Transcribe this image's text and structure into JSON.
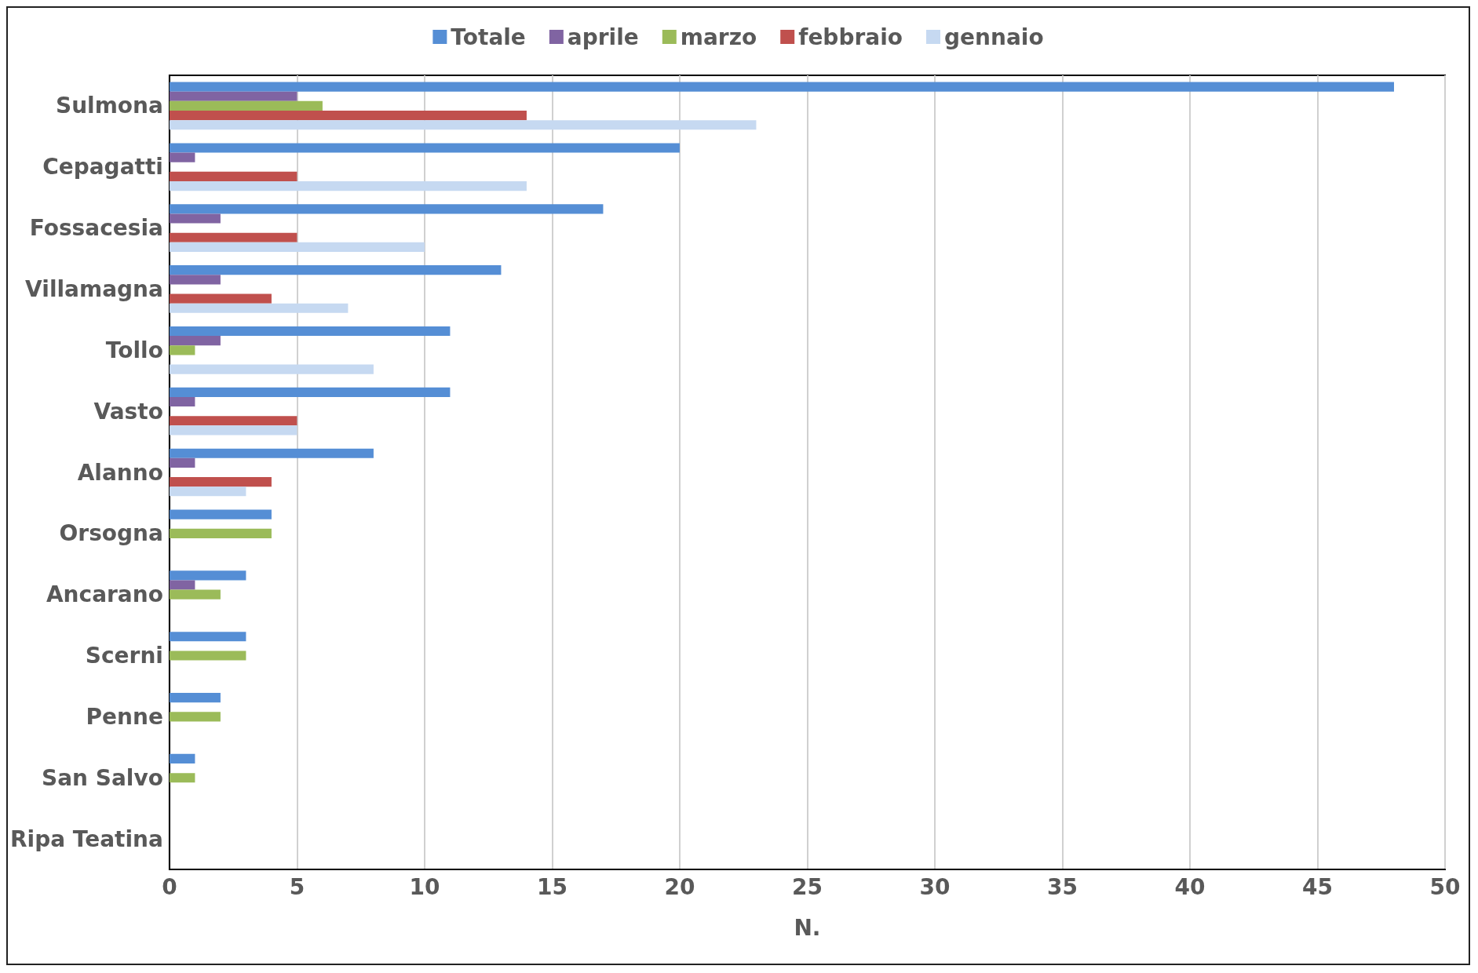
{
  "chart_data": {
    "type": "bar",
    "orientation": "horizontal",
    "xlabel": "N.",
    "categories": [
      "Sulmona",
      "Cepagatti",
      "Fossacesia",
      "Villamagna",
      "Tollo",
      "Vasto",
      "Alanno",
      "Orsogna",
      "Ancarano",
      "Scerni",
      "Penne",
      "San Salvo",
      "Ripa Teatina"
    ],
    "series": [
      {
        "name": "Totale",
        "color": "#558ed5",
        "values": [
          48,
          20,
          17,
          13,
          11,
          11,
          8,
          4,
          3,
          3,
          2,
          1,
          0
        ]
      },
      {
        "name": "aprile",
        "color": "#8064a2",
        "values": [
          5,
          1,
          2,
          2,
          2,
          1,
          1,
          0,
          1,
          0,
          0,
          0,
          0
        ]
      },
      {
        "name": "marzo",
        "color": "#9bbb59",
        "values": [
          6,
          0,
          0,
          0,
          1,
          0,
          0,
          4,
          2,
          3,
          2,
          1,
          0
        ]
      },
      {
        "name": "febbraio",
        "color": "#c0504d",
        "values": [
          14,
          5,
          5,
          4,
          0,
          5,
          4,
          0,
          0,
          0,
          0,
          0,
          0
        ]
      },
      {
        "name": "gennaio",
        "color": "#c6d9f1",
        "values": [
          23,
          14,
          10,
          7,
          8,
          5,
          3,
          0,
          0,
          0,
          0,
          0,
          0
        ]
      }
    ],
    "xlim": [
      0,
      50
    ],
    "xticks": [
      0,
      5,
      10,
      15,
      20,
      25,
      30,
      35,
      40,
      45,
      50
    ],
    "grid": "x",
    "legend": "top"
  }
}
